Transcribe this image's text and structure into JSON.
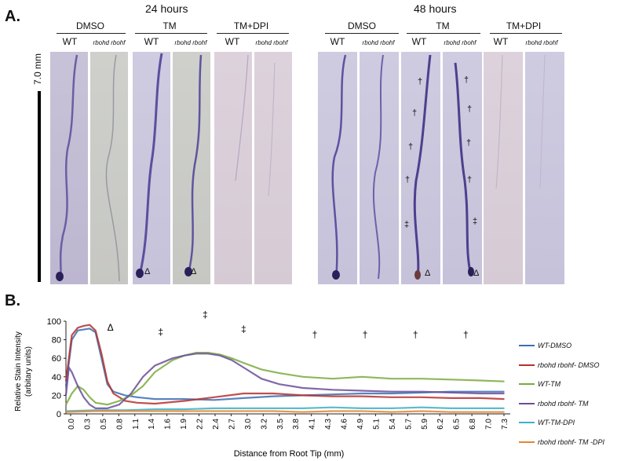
{
  "panel_a": {
    "letter": "A.",
    "scale_label": "7.0 mm",
    "time_24": "24 hours",
    "time_48": "48 hours",
    "groups_24": [
      "DMSO",
      "TM",
      "TM+DPI"
    ],
    "groups_48": [
      "DMSO",
      "TM",
      "TM+DPI"
    ],
    "cols": [
      "WT",
      "rbohd rbohf",
      "WT",
      "rbohd rbohf",
      "WT",
      "rbohd rbohf"
    ],
    "triangle": "Δ",
    "dagger": "†",
    "ddagger": "‡"
  },
  "panel_b": {
    "letter": "B."
  },
  "chart_data": {
    "type": "line",
    "xlabel": "Distance from Root Tip (mm)",
    "ylabel_line1": "Relative Stain Intensity",
    "ylabel_line2": "(arbitary units)",
    "ylim": [
      0,
      100
    ],
    "yticks": [
      "0",
      "20",
      "40",
      "60",
      "80",
      "100"
    ],
    "xticks": [
      "0.0",
      "0.3",
      "0.5",
      "0.8",
      "1.1",
      "1.4",
      "1.6",
      "1.9",
      "2.2",
      "2.4",
      "2.7",
      "3.0",
      "3.2",
      "3.5",
      "3.8",
      "4.1",
      "4.3",
      "4.6",
      "4.9",
      "5.1",
      "5.4",
      "5.7",
      "5.9",
      "6.2",
      "6.5",
      "6.8",
      "7.0",
      "7.3"
    ],
    "xlim": [
      0,
      7.5
    ],
    "annotations": [
      {
        "text": "Δ",
        "x": 0.75,
        "y": 90
      },
      {
        "text": "‡",
        "x": 1.6,
        "y": 85
      },
      {
        "text": "‡",
        "x": 2.35,
        "y": 104
      },
      {
        "text": "‡",
        "x": 3.0,
        "y": 88
      },
      {
        "text": "†",
        "x": 4.2,
        "y": 82
      },
      {
        "text": "†",
        "x": 5.05,
        "y": 82
      },
      {
        "text": "†",
        "x": 5.9,
        "y": 82
      },
      {
        "text": "†",
        "x": 6.75,
        "y": 82
      }
    ],
    "series": [
      {
        "name": "WT-DMSO",
        "color": "#3a6fb0",
        "x": [
          0,
          0.1,
          0.2,
          0.3,
          0.4,
          0.5,
          0.6,
          0.7,
          0.8,
          1.0,
          1.2,
          1.5,
          2.0,
          2.5,
          3.0,
          3.5,
          4.0,
          4.5,
          5.0,
          5.5,
          6.0,
          6.5,
          7.0,
          7.4
        ],
        "y": [
          30,
          80,
          90,
          91,
          92,
          88,
          60,
          32,
          24,
          20,
          18,
          16,
          16,
          15,
          17,
          19,
          20,
          21,
          22,
          22,
          23,
          24,
          24,
          24
        ]
      },
      {
        "name": "rbohd rbohf- DMSO",
        "color": "#b5302e",
        "x": [
          0,
          0.1,
          0.2,
          0.3,
          0.4,
          0.5,
          0.6,
          0.7,
          0.8,
          1.0,
          1.2,
          1.5,
          2.0,
          2.5,
          3.0,
          3.5,
          4.0,
          4.5,
          5.0,
          5.5,
          6.0,
          6.5,
          7.0,
          7.4
        ],
        "y": [
          35,
          85,
          93,
          95,
          96,
          90,
          65,
          35,
          22,
          14,
          12,
          11,
          14,
          18,
          22,
          22,
          20,
          19,
          19,
          18,
          18,
          17,
          17,
          16
        ]
      },
      {
        "name": "WT-TM",
        "color": "#7aab3c",
        "x": [
          0,
          0.1,
          0.2,
          0.3,
          0.4,
          0.5,
          0.7,
          0.9,
          1.1,
          1.3,
          1.5,
          1.8,
          2.0,
          2.2,
          2.4,
          2.6,
          2.8,
          3.0,
          3.3,
          3.6,
          4.0,
          4.5,
          5.0,
          5.5,
          6.0,
          6.5,
          7.0,
          7.4
        ],
        "y": [
          10,
          22,
          30,
          26,
          18,
          12,
          10,
          14,
          20,
          30,
          45,
          58,
          63,
          66,
          66,
          64,
          60,
          55,
          48,
          44,
          40,
          38,
          40,
          38,
          38,
          37,
          36,
          35
        ]
      },
      {
        "name": "rbohd rbohf- TM",
        "color": "#6b4d99",
        "x": [
          0,
          0.05,
          0.1,
          0.2,
          0.3,
          0.4,
          0.5,
          0.7,
          0.9,
          1.1,
          1.3,
          1.5,
          1.8,
          2.0,
          2.2,
          2.4,
          2.6,
          2.8,
          3.0,
          3.3,
          3.6,
          4.0,
          4.5,
          5.0,
          5.5,
          6.0,
          6.5,
          7.0,
          7.4
        ],
        "y": [
          20,
          50,
          45,
          30,
          18,
          10,
          6,
          6,
          10,
          22,
          40,
          52,
          60,
          63,
          65,
          65,
          63,
          58,
          50,
          38,
          32,
          28,
          26,
          25,
          24,
          24,
          23,
          22,
          22
        ]
      },
      {
        "name": "WT-TM-DPI",
        "color": "#3bb0c8",
        "x": [
          0,
          0.5,
          1.0,
          1.5,
          2.0,
          2.5,
          3.0,
          3.5,
          4.0,
          4.5,
          5.0,
          5.5,
          6.0,
          6.5,
          7.0,
          7.4
        ],
        "y": [
          3,
          4,
          4,
          5,
          5,
          6,
          6,
          6,
          6,
          7,
          6,
          6,
          7,
          6,
          6,
          6
        ]
      },
      {
        "name": "rbohd rbohf- TM -DPI",
        "color": "#e4862e",
        "x": [
          0,
          0.5,
          1.0,
          1.5,
          2.0,
          2.5,
          3.0,
          3.5,
          4.0,
          4.5,
          5.0,
          5.5,
          6.0,
          6.5,
          7.0,
          7.4
        ],
        "y": [
          2,
          3,
          3,
          3,
          3,
          3,
          3,
          3,
          2,
          3,
          3,
          2,
          3,
          2,
          2,
          2
        ]
      }
    ]
  }
}
